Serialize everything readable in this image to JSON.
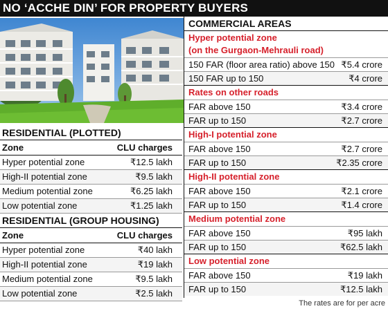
{
  "title": "NO ‘ACCHE DIN’ FOR PROPERTY BUYERS",
  "residential_plotted": {
    "title": "RESIDENTIAL (PLOTTED)",
    "col_zone": "Zone",
    "col_charges": "CLU charges",
    "rows": [
      {
        "zone": "Hyper potential zone",
        "charge": "₹12.5 lakh"
      },
      {
        "zone": "High-II potential zone",
        "charge": "₹9.5 lakh"
      },
      {
        "zone": "Medium potential zone",
        "charge": "₹6.25 lakh"
      },
      {
        "zone": "Low potential zone",
        "charge": "₹1.25 lakh"
      }
    ]
  },
  "residential_group": {
    "title": "RESIDENTIAL (GROUP HOUSING)",
    "col_zone": "Zone",
    "col_charges": "CLU charges",
    "rows": [
      {
        "zone": "Hyper potential zone",
        "charge": "₹40 lakh"
      },
      {
        "zone": "High-II potential zone",
        "charge": "₹19 lakh"
      },
      {
        "zone": "Medium potential zone",
        "charge": "₹9.5 lakh"
      },
      {
        "zone": "Low potential zone",
        "charge": "₹2.5 lakh"
      }
    ]
  },
  "commercial": {
    "title": "COMMERCIAL AREAS",
    "hyper_title": "Hyper potential zone",
    "hyper_subtitle": "(on the Gurgaon-Mehrauli road)",
    "hyper_rows": [
      {
        "label": "150 FAR (floor area ratio) above 150",
        "value": "₹5.4 crore"
      },
      {
        "label": "150 FAR up to 150",
        "value": "₹4 crore"
      }
    ],
    "other_title": "Rates on other roads",
    "other_rows": [
      {
        "label": "FAR above 150",
        "value": "₹3.4 crore"
      },
      {
        "label": "FAR up to 150",
        "value": "₹2.7 crore"
      }
    ],
    "high1_title": "High-I potential zone",
    "high1_rows": [
      {
        "label": "FAR above 150",
        "value": "₹2.7 crore"
      },
      {
        "label": "FAR up to 150",
        "value": "₹2.35 crore"
      }
    ],
    "high2_title": "High-II potential zone",
    "high2_rows": [
      {
        "label": "FAR above 150",
        "value": "₹2.1 crore"
      },
      {
        "label": "FAR up to 150",
        "value": "₹1.4 crore"
      }
    ],
    "medium_title": "Medium potential zone",
    "medium_rows": [
      {
        "label": "FAR above 150",
        "value": "₹95 lakh"
      },
      {
        "label": "FAR up to 150",
        "value": "₹62.5 lakh"
      }
    ],
    "low_title": "Low potential zone",
    "low_rows": [
      {
        "label": "FAR above 150",
        "value": "₹19 lakh"
      },
      {
        "label": "FAR up to 150",
        "value": "₹12.5 lakh"
      }
    ]
  },
  "footnote": "The rates are for per acre"
}
